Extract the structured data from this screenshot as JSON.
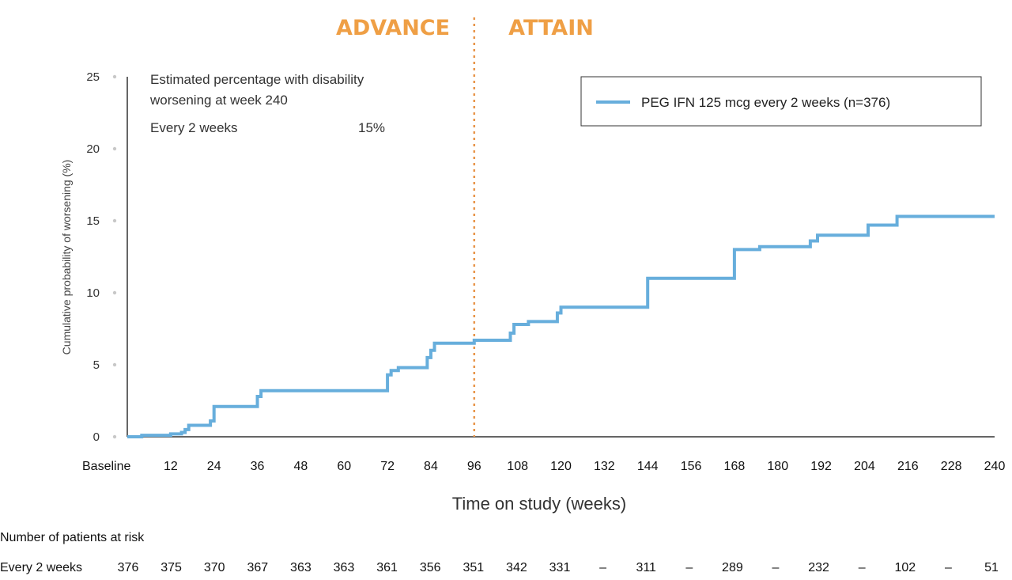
{
  "chart_data": {
    "type": "line",
    "phase_labels": [
      "ADVANCE",
      "ATTAIN"
    ],
    "phase_divider_x": 96,
    "xlabel": "Time on study (weeks)",
    "ylabel": "Cumulative probability of worsening (%)",
    "xlim": [
      0,
      240
    ],
    "ylim": [
      0,
      25
    ],
    "x_ticks": [
      "Baseline",
      "12",
      "24",
      "36",
      "48",
      "60",
      "72",
      "84",
      "96",
      "108",
      "120",
      "132",
      "144",
      "156",
      "168",
      "180",
      "192",
      "204",
      "216",
      "228",
      "240"
    ],
    "y_ticks": [
      "0",
      "5",
      "10",
      "15",
      "20",
      "25"
    ],
    "grid": false,
    "legend_position": "top-right",
    "series": [
      {
        "name": "PEG IFN 125 mcg every 2 weeks (n=376)",
        "color": "#67aedc",
        "step": true,
        "points": [
          [
            0,
            0
          ],
          [
            4,
            0.1
          ],
          [
            12,
            0.2
          ],
          [
            15,
            0.3
          ],
          [
            16,
            0.5
          ],
          [
            17,
            0.8
          ],
          [
            23,
            1.1
          ],
          [
            24,
            2.1
          ],
          [
            36,
            2.8
          ],
          [
            37,
            3.2
          ],
          [
            72,
            4.3
          ],
          [
            73,
            4.6
          ],
          [
            75,
            4.8
          ],
          [
            83,
            5.5
          ],
          [
            84,
            6.0
          ],
          [
            85,
            6.5
          ],
          [
            96,
            6.7
          ],
          [
            106,
            7.2
          ],
          [
            107,
            7.8
          ],
          [
            111,
            8.0
          ],
          [
            119,
            8.6
          ],
          [
            120,
            9.0
          ],
          [
            144,
            11.0
          ],
          [
            168,
            13.0
          ],
          [
            175,
            13.2
          ],
          [
            189,
            13.6
          ],
          [
            191,
            14.0
          ],
          [
            205,
            14.7
          ],
          [
            213,
            15.3
          ],
          [
            240,
            15.3
          ]
        ]
      }
    ],
    "annotation": {
      "title_line1": "Estimated percentage with disability",
      "title_line2": "worsening at week 240",
      "row_label": "Every 2 weeks",
      "row_value": "15%"
    },
    "risk_table": {
      "title": "Number of patients at risk",
      "row_label": "Every 2 weeks",
      "values": [
        "376",
        "375",
        "370",
        "367",
        "363",
        "363",
        "361",
        "356",
        "351",
        "342",
        "331",
        "–",
        "311",
        "–",
        "289",
        "–",
        "232",
        "–",
        "102",
        "–",
        "51"
      ]
    },
    "colors": {
      "phase": "#ef9f45",
      "divider": "#e8954a",
      "series": "#67aedc",
      "axis": "#333333"
    }
  }
}
